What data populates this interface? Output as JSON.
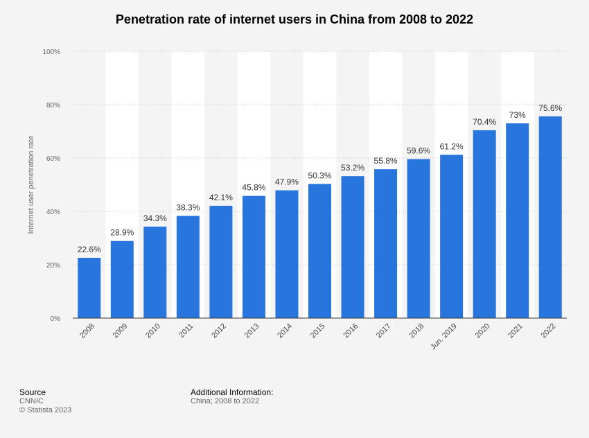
{
  "chart_data": {
    "type": "bar",
    "title": "Penetration rate of internet users in China from 2008 to 2022",
    "xlabel": "",
    "ylabel": "Internet user penetration rate",
    "categories": [
      "2008",
      "2009",
      "2010",
      "2011",
      "2012",
      "2013",
      "2014",
      "2015",
      "2016",
      "2017",
      "2018",
      "Jun. 2019",
      "2020",
      "2021",
      "2022"
    ],
    "values": [
      22.6,
      28.9,
      34.3,
      38.3,
      42.1,
      45.8,
      47.9,
      50.3,
      53.2,
      55.8,
      59.6,
      61.2,
      70.4,
      73,
      75.6
    ],
    "data_labels": [
      "22.6%",
      "28.9%",
      "34.3%",
      "38.3%",
      "42.1%",
      "45.8%",
      "47.9%",
      "50.3%",
      "53.2%",
      "55.8%",
      "59.6%",
      "61.2%",
      "70.4%",
      "73%",
      "75.6%"
    ],
    "ylim": [
      0,
      100
    ],
    "y_ticks": [
      0,
      20,
      40,
      60,
      80,
      100
    ],
    "y_tick_labels": [
      "0%",
      "20%",
      "40%",
      "60%",
      "80%",
      "100%"
    ],
    "grid": true,
    "bar_color": "#2876dd"
  },
  "footer": {
    "source_heading": "Source",
    "source_lines": [
      "CNNIC",
      "© Statista 2023"
    ],
    "additional_heading": "Additional Information:",
    "additional_text": "China; 2008 to 2022"
  }
}
